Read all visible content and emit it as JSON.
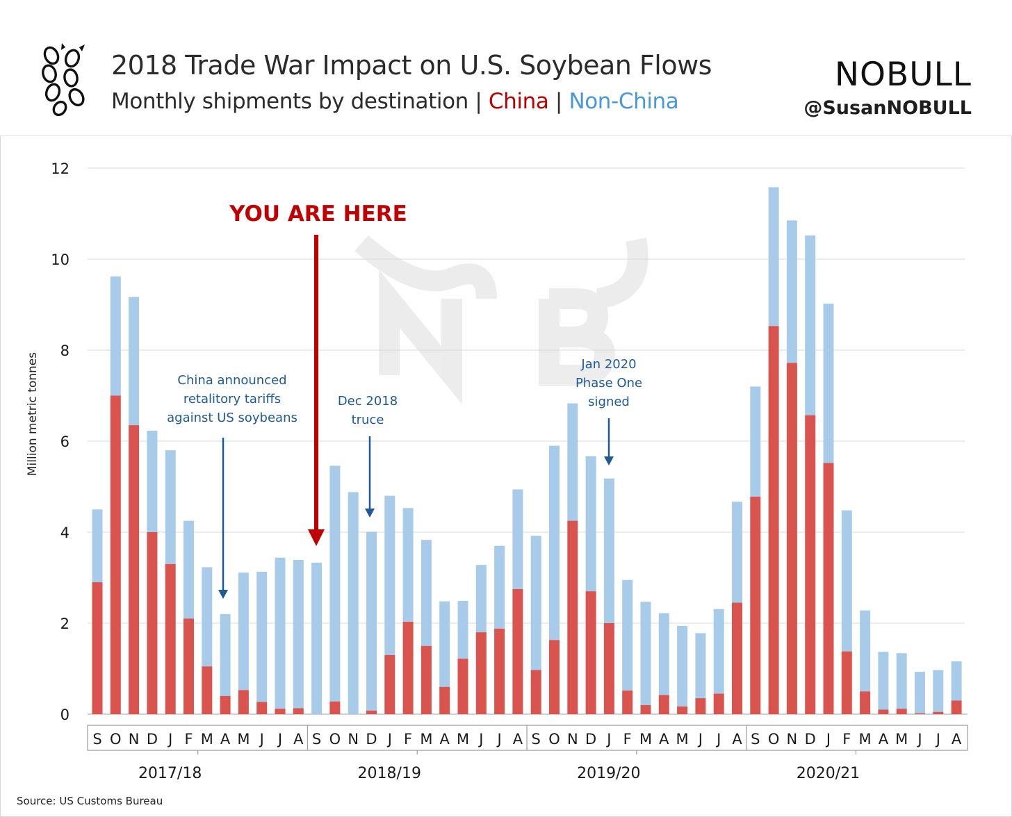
{
  "title": "2018 Trade War Impact on U.S. Soybean Flows",
  "subtitle": {
    "prefix": "Monthly shipments by destination |",
    "china": "China",
    "sep": "|",
    "non_china": "Non-China"
  },
  "brand": "NOBULL",
  "handle": "@SusanNOBULL",
  "source": "Source: US Customs Bureau",
  "colors": {
    "china": "#d9534f",
    "non_china": "#a8cbea",
    "annotation": "#1f5a96",
    "highlight": "#c00000"
  },
  "icons": {
    "logo": "soybean-pod-icon",
    "watermark": "nobull-watermark-icon"
  },
  "chart_data": {
    "type": "bar",
    "stacked": true,
    "ylabel": "Million metric tonnes",
    "ylim": [
      0,
      12
    ],
    "yticks": [
      0,
      2,
      4,
      6,
      8,
      10,
      12
    ],
    "grid": true,
    "categories": [
      "S",
      "O",
      "N",
      "D",
      "J",
      "F",
      "M",
      "A",
      "M",
      "J",
      "J",
      "A",
      "S",
      "O",
      "N",
      "D",
      "J",
      "F",
      "M",
      "A",
      "M",
      "J",
      "J",
      "A",
      "S",
      "O",
      "N",
      "D",
      "J",
      "F",
      "M",
      "A",
      "M",
      "J",
      "J",
      "A",
      "S",
      "O",
      "N",
      "D",
      "J",
      "F",
      "M",
      "A",
      "M",
      "J",
      "J",
      "A"
    ],
    "seasons": [
      "2017/18",
      "2018/19",
      "2019/20",
      "2020/21"
    ],
    "series": [
      {
        "name": "China",
        "values": [
          2.9,
          7.0,
          6.35,
          4.0,
          3.3,
          2.1,
          1.05,
          0.4,
          0.53,
          0.27,
          0.12,
          0.13,
          0.0,
          0.28,
          0.0,
          0.08,
          1.3,
          2.03,
          1.5,
          0.6,
          1.22,
          1.8,
          1.88,
          2.75,
          0.97,
          1.63,
          4.25,
          2.7,
          2.0,
          0.52,
          0.2,
          0.42,
          0.17,
          0.35,
          0.45,
          2.45,
          4.78,
          8.53,
          7.72,
          6.57,
          5.52,
          1.38,
          0.5,
          0.1,
          0.12,
          0.02,
          0.05,
          0.3
        ]
      },
      {
        "name": "Non-China",
        "values": [
          1.6,
          2.62,
          2.82,
          2.23,
          2.5,
          2.15,
          2.18,
          1.8,
          2.58,
          2.86,
          3.32,
          3.26,
          3.33,
          5.18,
          4.88,
          3.93,
          3.5,
          2.5,
          2.33,
          1.88,
          1.27,
          1.48,
          1.82,
          2.19,
          2.95,
          4.27,
          2.58,
          2.97,
          3.18,
          2.43,
          2.27,
          1.8,
          1.77,
          1.43,
          1.86,
          2.22,
          2.42,
          3.05,
          3.13,
          3.95,
          3.5,
          3.1,
          1.78,
          1.27,
          1.22,
          0.91,
          0.92,
          0.86
        ]
      }
    ],
    "annotations": [
      {
        "lines": [
          "China announced",
          "retalitory tariffs",
          "against US soybeans"
        ],
        "at": "A 2018"
      },
      {
        "lines": [
          "Dec 2018",
          "truce"
        ],
        "at": "D 2018"
      },
      {
        "lines": [
          "Jan 2020",
          "Phase One",
          "signed"
        ],
        "at": "J 2020"
      }
    ],
    "highlight": {
      "label": "YOU ARE HERE",
      "at": "S 2018"
    }
  }
}
